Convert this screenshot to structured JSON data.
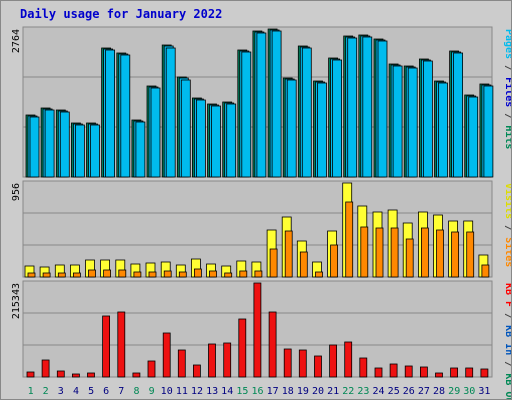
{
  "chart_data": [
    {
      "type": "bar",
      "title": "Daily usage for January 2022",
      "max_label": "2764",
      "ylim": [
        0,
        2764
      ],
      "right_labels": [
        {
          "text": "Pages",
          "color": "#00bbee"
        },
        {
          "text": "Files",
          "color": "#0000cc"
        },
        {
          "text": "Hits",
          "color": "#008855"
        }
      ],
      "categories": [
        "1",
        "2",
        "3",
        "4",
        "5",
        "6",
        "7",
        "8",
        "9",
        "10",
        "11",
        "12",
        "13",
        "14",
        "15",
        "16",
        "17",
        "18",
        "19",
        "20",
        "21",
        "22",
        "23",
        "24",
        "25",
        "26",
        "27",
        "28",
        "29",
        "30",
        "31"
      ],
      "series": [
        {
          "name": "Hits",
          "color": "#00805c",
          "values": [
            1160,
            1295,
            1250,
            1006,
            1016,
            2412,
            2319,
            1070,
            1699,
            2458,
            1860,
            1470,
            1360,
            1398,
            2372,
            2727,
            2764,
            1854,
            2449,
            1800,
            2225,
            2627,
            2647,
            2575,
            2106,
            2073,
            2200,
            1800,
            2350,
            1530,
            1740
          ]
        },
        {
          "name": "Files",
          "color": "#00bbee",
          "values": [
            1140,
            1275,
            1230,
            986,
            996,
            2392,
            2299,
            1050,
            1679,
            2438,
            1840,
            1450,
            1340,
            1378,
            2352,
            2707,
            2744,
            1834,
            2429,
            1780,
            2205,
            2607,
            2627,
            2555,
            2086,
            2053,
            2180,
            1780,
            2330,
            1510,
            1720
          ]
        },
        {
          "name": "Pages",
          "color": "#00bbee",
          "values": [
            1120,
            1255,
            1210,
            966,
            976,
            2372,
            2279,
            1030,
            1659,
            2418,
            1820,
            1430,
            1320,
            1358,
            2332,
            2687,
            2724,
            1814,
            2409,
            1760,
            2185,
            2587,
            2607,
            2535,
            2066,
            2033,
            2160,
            1760,
            2310,
            1490,
            1700
          ]
        }
      ]
    },
    {
      "type": "bar",
      "max_label": "956",
      "ylim": [
        0,
        956
      ],
      "right_labels": [
        {
          "text": "Visits",
          "color": "#dddd00"
        },
        {
          "text": "Sites",
          "color": "#ff8800"
        }
      ],
      "categories": [
        "1",
        "2",
        "3",
        "4",
        "5",
        "6",
        "7",
        "8",
        "9",
        "10",
        "11",
        "12",
        "13",
        "14",
        "15",
        "16",
        "17",
        "18",
        "19",
        "20",
        "21",
        "22",
        "23",
        "24",
        "25",
        "26",
        "27",
        "28",
        "29",
        "30",
        "31"
      ],
      "series": [
        {
          "name": "Visits",
          "color": "#ffff33",
          "values": [
            115,
            106,
            120,
            120,
            170,
            175,
            175,
            130,
            140,
            150,
            120,
            180,
            130,
            110,
            160,
            150,
            480,
            610,
            370,
            150,
            470,
            956,
            720,
            660,
            680,
            550,
            660,
            630,
            570,
            570,
            225
          ]
        },
        {
          "name": "Sites",
          "color": "#ff8800",
          "values": [
            45,
            40,
            45,
            45,
            70,
            72,
            72,
            55,
            55,
            60,
            50,
            80,
            60,
            45,
            65,
            60,
            280,
            470,
            250,
            50,
            330,
            760,
            510,
            500,
            500,
            390,
            500,
            480,
            460,
            460,
            120
          ]
        }
      ]
    },
    {
      "type": "bar",
      "max_label": "215343",
      "ylim": [
        0,
        215343
      ],
      "right_labels": [
        {
          "text": "KB F",
          "color": "#ff0000"
        },
        {
          "text": "KB In",
          "color": "#0055bb"
        },
        {
          "text": "KB Out",
          "color": "#008855"
        }
      ],
      "categories": [
        "1",
        "2",
        "3",
        "4",
        "5",
        "6",
        "7",
        "8",
        "9",
        "10",
        "11",
        "12",
        "13",
        "14",
        "15",
        "16",
        "17",
        "18",
        "19",
        "20",
        "21",
        "22",
        "23",
        "24",
        "25",
        "26",
        "27",
        "28",
        "29",
        "30",
        "31"
      ],
      "series": [
        {
          "name": "KB F",
          "color": "#ee1111",
          "values": [
            12500,
            40000,
            13000,
            8000,
            8500,
            140000,
            150000,
            9500,
            37000,
            101000,
            62000,
            28000,
            76000,
            78000,
            133000,
            215343,
            150000,
            63000,
            62000,
            47000,
            73000,
            81000,
            43000,
            21000,
            30000,
            26000,
            24000,
            10000,
            20000,
            20000,
            19000
          ]
        }
      ]
    }
  ],
  "x_axis": {
    "labels": [
      "1",
      "2",
      "3",
      "4",
      "5",
      "6",
      "7",
      "8",
      "9",
      "10",
      "11",
      "12",
      "13",
      "14",
      "15",
      "16",
      "17",
      "18",
      "19",
      "20",
      "21",
      "22",
      "23",
      "24",
      "25",
      "26",
      "27",
      "28",
      "29",
      "30",
      "31"
    ],
    "weekend_days": [
      "1",
      "2",
      "8",
      "9",
      "15",
      "16",
      "22",
      "23",
      "29",
      "30"
    ],
    "weekday_color": "#000080",
    "weekend_color": "#008855"
  }
}
